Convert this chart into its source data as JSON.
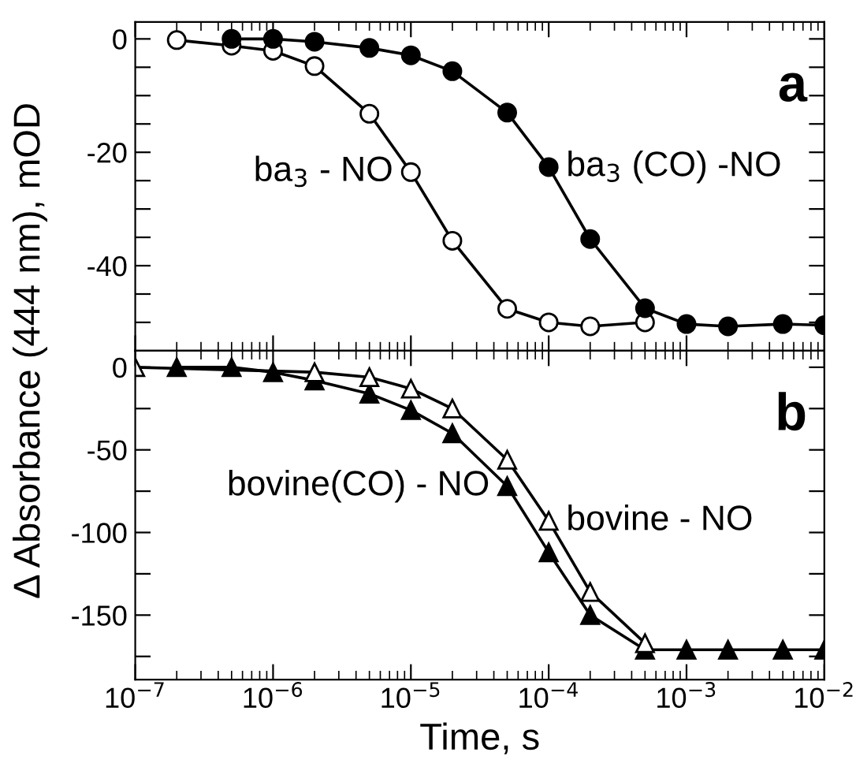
{
  "chart_data": [
    {
      "type": "line",
      "ylabel": "Δ Absorbance (444 nm), mOD",
      "tick_labels": "y",
      "log": "x",
      "xlim": [
        1e-07,
        0.01
      ],
      "xticks": [
        {
          "value": 1e-07,
          "label": null
        },
        {
          "value": 1e-06,
          "label": null
        },
        {
          "value": 1e-05,
          "label": null
        },
        {
          "value": 0.0001,
          "label": null
        },
        {
          "value": 0.001,
          "label": null
        },
        {
          "value": 0.01,
          "label": null
        }
      ],
      "ylim": [
        -55,
        3
      ],
      "yticks": [
        0,
        {
          "value": -5,
          "label": null
        },
        {
          "value": -10,
          "label": null
        },
        {
          "value": -15,
          "label": null
        },
        -20,
        {
          "value": -25,
          "label": null
        },
        {
          "value": -30,
          "label": null
        },
        {
          "value": -35,
          "label": null
        },
        -40,
        {
          "value": -45,
          "label": null
        },
        {
          "value": -50,
          "label": null
        }
      ],
      "grid": false,
      "line_style": "solid",
      "annotations": [
        "a"
      ],
      "series": [
        {
          "name": "ba$_{3}$ - NO",
          "color": "#ffffff",
          "marker": "circle",
          "x": [
            2e-07,
            5e-07,
            1e-06,
            2e-06,
            5e-06,
            1e-05,
            2e-05,
            5e-05,
            0.0001,
            0.0002,
            0.0005
          ],
          "values": [
            -0.2,
            -1.2,
            -2.1,
            -4.8,
            -13.2,
            -23.5,
            -35.6,
            -47.6,
            -50,
            -50.7,
            -50
          ]
        },
        {
          "name": "ba$_{3}$ (CO) -NO",
          "color": "#000000",
          "marker": "circle",
          "x": [
            5e-07,
            1e-06,
            2e-06,
            5e-06,
            1e-05,
            2e-05,
            5e-05,
            0.0001,
            0.0002,
            0.0005,
            0.001,
            0.002,
            0.005,
            0.01
          ],
          "values": [
            0,
            0,
            -0.5,
            -1.6,
            -2.9,
            -5.7,
            -13,
            -22.6,
            -35.3,
            -47.5,
            -50.3,
            -50.7,
            -50.3,
            -50.5
          ]
        }
      ]
    },
    {
      "type": "line",
      "xlabel": "Time, s",
      "log": "x",
      "xlim": [
        1e-07,
        0.01
      ],
      "xticks": [
        {
          "value": 1e-07,
          "label": "10$^{−7}$"
        },
        {
          "value": 1e-06,
          "label": "10$^{−6}$"
        },
        {
          "value": 1e-05,
          "label": "10$^{−5}$"
        },
        {
          "value": 0.0001,
          "label": "10$^{−4}$"
        },
        {
          "value": 0.001,
          "label": "10$^{−3}$"
        },
        {
          "value": 0.01,
          "label": "10$^{−2}$"
        }
      ],
      "ylim": [
        -189,
        10
      ],
      "yticks": [
        0,
        {
          "value": -25,
          "label": null
        },
        -50,
        {
          "value": -75,
          "label": null
        },
        -100,
        {
          "value": -125,
          "label": null
        },
        -150,
        {
          "value": -175,
          "label": null
        }
      ],
      "grid": false,
      "line_style": "solid",
      "annotations": [
        "b"
      ],
      "series": [
        {
          "name": "bovine(CO) - NO",
          "color": "#000000",
          "marker": "triangle",
          "x": [
            2e-07,
            5e-07,
            1e-06,
            2e-06,
            5e-06,
            1e-05,
            2e-05,
            5e-05,
            0.0001,
            0.0002,
            0.0005,
            0.001,
            0.002,
            0.005,
            0.01
          ],
          "values": [
            0,
            0,
            -3,
            -8,
            -16,
            -26,
            -40,
            -72,
            -112,
            -150,
            -171,
            -171,
            -171,
            -171,
            -171
          ]
        },
        {
          "name": "bovine - NO",
          "color": "#ffffff",
          "marker": "triangle",
          "x": [
            1e-07,
            2e-06,
            5e-06,
            1e-05,
            2e-05,
            5e-05,
            0.0001,
            0.0002,
            0.0005
          ],
          "values": [
            0,
            -3,
            -6,
            -13,
            -25,
            -56,
            -93,
            -136,
            -167
          ]
        }
      ]
    }
  ]
}
